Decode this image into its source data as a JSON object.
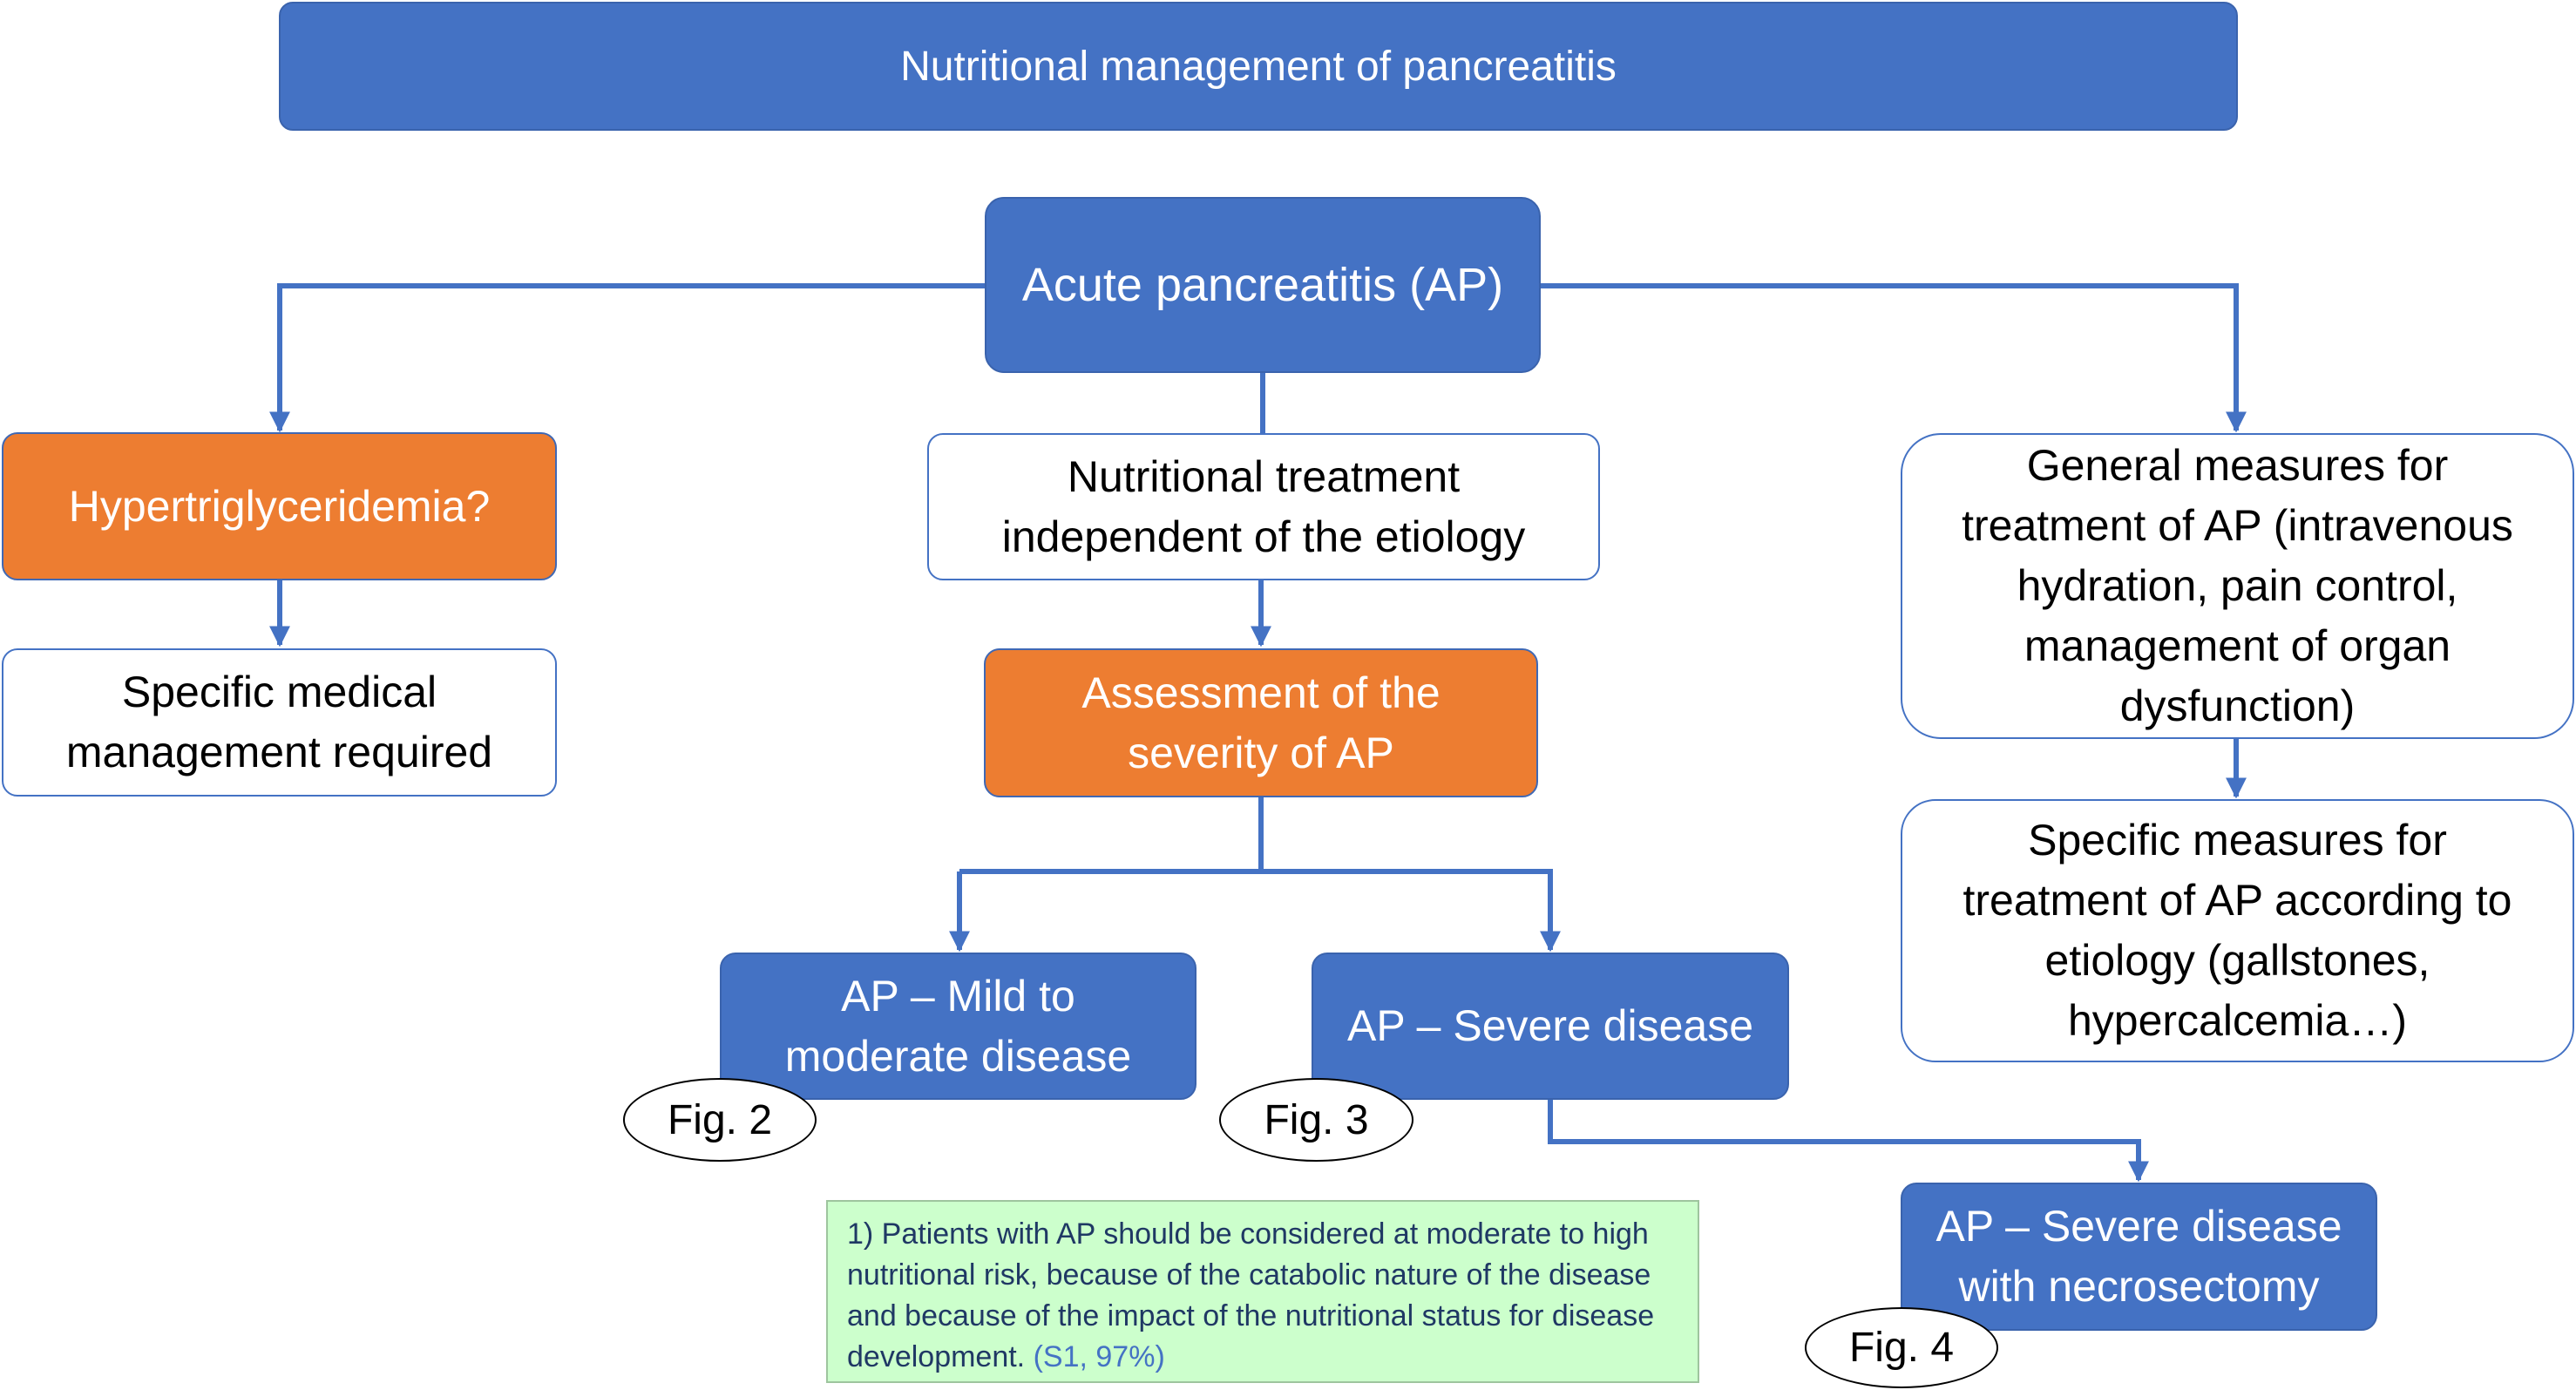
{
  "title": "Nutritional management of pancreatitis",
  "nodes": {
    "acute": "Acute pancreatitis (AP)",
    "hypertg": "Hypertriglyceridemia?",
    "specific_medical": "Specific medical\nmanagement required",
    "nutritional": "Nutritional treatment\nindependent of the etiology",
    "assessment": "Assessment of the\nseverity of AP",
    "mild": "AP – Mild to\nmoderate disease",
    "severe": "AP – Severe disease",
    "necro": "AP – Severe disease\nwith necrosectomy",
    "general": "General measures for\ntreatment of AP (intravenous\nhydration, pain control,\nmanagement of organ\ndysfunction)",
    "specific_etiology": "Specific measures for\ntreatment of AP according to\netiology (gallstones,\nhypercalcemia…)"
  },
  "figs": {
    "fig2": "Fig. 2",
    "fig3": "Fig. 3",
    "fig4": "Fig. 4"
  },
  "note": {
    "text": "1) Patients with AP should be considered at moderate to high nutritional risk, because of the catabolic nature of the disease and because of the impact of the nutritional status for disease development.",
    "ref": "(S1, 97%)"
  },
  "colors": {
    "blue": "#4472c4",
    "orange": "#ed7d31",
    "note_bg": "#ccffcc",
    "note_text": "#1f3864"
  }
}
